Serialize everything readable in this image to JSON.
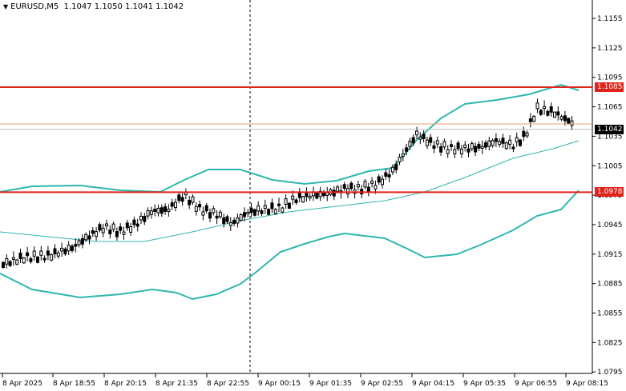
{
  "header": {
    "symbol": "EURUSD,M5",
    "ohlc": "1.1047 1.1050 1.1041 1.1042",
    "menu_icon": "triangle-down-icon"
  },
  "price_labels": [
    "1.1155",
    "1.1125",
    "1.1095",
    "1.1065",
    "1.1035",
    "1.1005",
    "1.0975",
    "1.0945",
    "1.0915",
    "1.0885",
    "1.0855",
    "1.0825",
    "1.0795"
  ],
  "time_labels": [
    "8 Apr 2025",
    "8 Apr 18:55",
    "8 Apr 20:15",
    "8 Apr 21:35",
    "8 Apr 22:55",
    "9 Apr 00:15",
    "9 Apr 01:35",
    "9 Apr 02:55",
    "9 Apr 04:15",
    "9 Apr 05:35",
    "9 Apr 06:55",
    "9 Apr 08:15"
  ],
  "levels": {
    "resistance": "1.1085",
    "support": "1.0978",
    "current": "1.1042"
  },
  "colors": {
    "level_line": "#e0231b",
    "bands": "#2fb7ad",
    "current_price_tag": "#000000",
    "bid_line": "#e8a46a",
    "candle": "#000000"
  }
}
